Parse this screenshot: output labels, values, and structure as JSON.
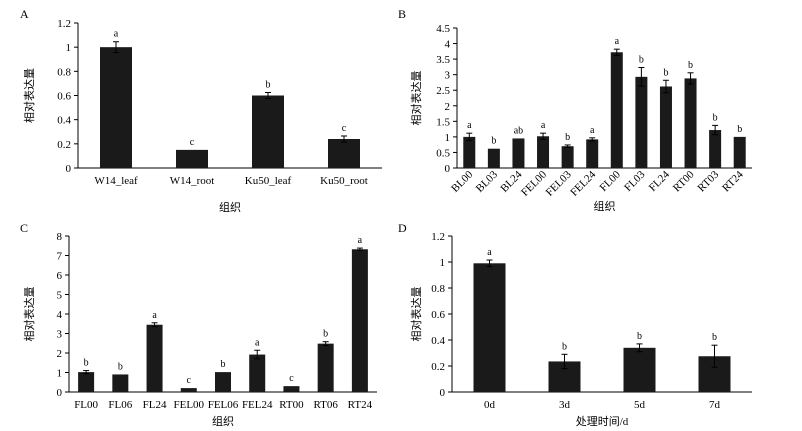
{
  "chart_data": [
    {
      "panel": "A",
      "type": "bar",
      "categories": [
        "W14_leaf",
        "W14_root",
        "Ku50_leaf",
        "Ku50_root"
      ],
      "values": [
        1.0,
        0.15,
        0.6,
        0.24
      ],
      "errors": [
        0.045,
        0.0,
        0.025,
        0.025
      ],
      "labels": [
        "a",
        "c",
        "b",
        "c"
      ],
      "xlabel": "组织",
      "ylabel": "相对表达量",
      "ylim": [
        0,
        1.2
      ],
      "yticks": [
        "0",
        "0.2",
        "0.4",
        "0.6",
        "0.8",
        "1",
        "1.2"
      ],
      "bar_color": "#1a1a1a"
    },
    {
      "panel": "B",
      "type": "bar",
      "categories": [
        "BL00",
        "BL03",
        "BL24",
        "FEL00",
        "FEL03",
        "FEL24",
        "FL00",
        "FL03",
        "FL24",
        "RT00",
        "RT03",
        "RT24"
      ],
      "values": [
        1.0,
        0.62,
        0.95,
        1.02,
        0.7,
        0.92,
        3.72,
        2.93,
        2.62,
        2.88,
        1.22,
        1.0
      ],
      "errors": [
        0.12,
        0.0,
        0.0,
        0.1,
        0.04,
        0.05,
        0.1,
        0.3,
        0.2,
        0.18,
        0.15,
        0.0
      ],
      "labels": [
        "a",
        "b",
        "ab",
        "a",
        "b",
        "a",
        "a",
        "b",
        "b",
        "b",
        "b",
        "b"
      ],
      "xlabel": "组织",
      "ylabel": "相对表达量",
      "ylim": [
        0,
        4.5
      ],
      "yticks": [
        "0",
        "0.5",
        "1",
        "1.5",
        "2",
        "2.5",
        "3",
        "3.5",
        "4",
        "4.5"
      ],
      "bar_color": "#1a1a1a"
    },
    {
      "panel": "C",
      "type": "bar",
      "categories": [
        "FL00",
        "FL06",
        "FL24",
        "FEL00",
        "FEL06",
        "FEL24",
        "RT00",
        "RT06",
        "RT24"
      ],
      "values": [
        1.02,
        0.9,
        3.45,
        0.2,
        1.02,
        1.92,
        0.3,
        2.48,
        7.32
      ],
      "errors": [
        0.08,
        0.0,
        0.1,
        0.0,
        0.0,
        0.22,
        0.0,
        0.1,
        0.06
      ],
      "labels": [
        "b",
        "b",
        "a",
        "c",
        "b",
        "a",
        "c",
        "b",
        "a"
      ],
      "xlabel": "组织",
      "ylabel": "相对表达量",
      "ylim": [
        0,
        8
      ],
      "yticks": [
        "0",
        "1",
        "2",
        "3",
        "4",
        "5",
        "6",
        "7",
        "8"
      ],
      "bar_color": "#1a1a1a"
    },
    {
      "panel": "D",
      "type": "bar",
      "categories": [
        "0d",
        "3d",
        "5d",
        "7d"
      ],
      "values": [
        0.99,
        0.235,
        0.34,
        0.275
      ],
      "errors": [
        0.025,
        0.055,
        0.03,
        0.085
      ],
      "labels": [
        "a",
        "b",
        "b",
        "b"
      ],
      "xlabel": "处理时间/d",
      "ylabel": "相对表达量",
      "ylim": [
        0,
        1.2
      ],
      "yticks": [
        "0",
        "0.2",
        "0.4",
        "0.6",
        "0.8",
        "1",
        "1.2"
      ],
      "bar_color": "#1a1a1a"
    }
  ]
}
